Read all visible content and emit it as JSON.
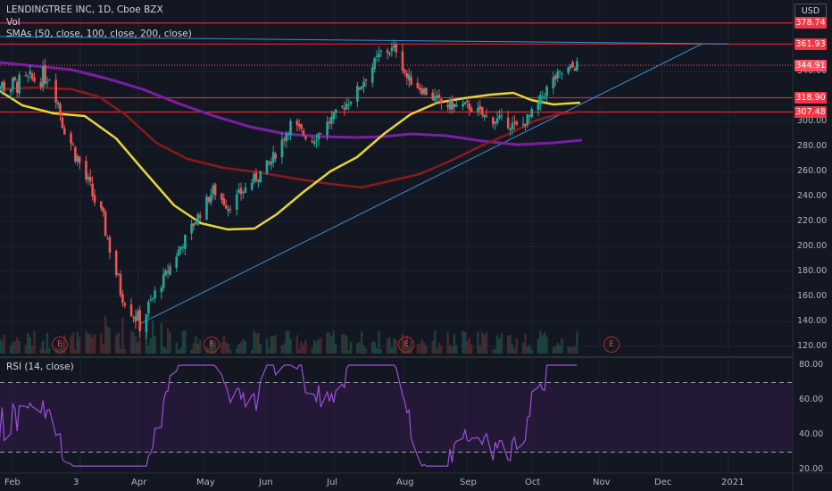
{
  "header": {
    "symbol_line": "LENDINGTREE INC, 1D, Cboe BZX",
    "vol_label": "Vol",
    "sma_label": "SMAs (50, close, 100, close, 200, close)",
    "currency": "USD",
    "rsi_label": "RSI (14, close)"
  },
  "earnings_marker": "E",
  "price_tags": [
    {
      "label": "378.74",
      "value": 378.74,
      "color": "#f23645"
    },
    {
      "label": "361.93",
      "value": 361.93,
      "color": "#f23645"
    },
    {
      "label": "344.91",
      "value": 344.91,
      "color": "#f7525f"
    },
    {
      "label": "318.90",
      "value": 318.9,
      "color": "#f23645"
    },
    {
      "label": "307.48",
      "value": 307.48,
      "color": "#f23645"
    }
  ],
  "chart_data": {
    "type": "candlestick",
    "price_axis": {
      "ticks": [
        "340.00",
        "320.00",
        "300.00",
        "280.00",
        "260.00",
        "240.00",
        "220.00",
        "200.00",
        "180.00",
        "160.00",
        "140.00",
        "120.00"
      ],
      "range": [
        114,
        384
      ]
    },
    "rsi_axis": {
      "ticks": [
        "80.00",
        "60.00",
        "40.00",
        "20.00"
      ],
      "range": [
        16,
        84
      ],
      "bands": [
        30,
        70
      ]
    },
    "x_axis": {
      "ticks": [
        "Feb",
        "3",
        "Apr",
        "May",
        "Jun",
        "Jul",
        "Aug",
        "Sep",
        "Oct",
        "Nov",
        "Dec",
        "2021"
      ]
    },
    "horizontal_levels": [
      378.74,
      361.93,
      318.9,
      307.48
    ],
    "trendlines": [
      {
        "name": "descending",
        "from": [
          "Jan 20",
          368
        ],
        "to": [
          "Dec 30",
          362
        ]
      },
      {
        "name": "ascending",
        "from": [
          "Apr 1",
          138
        ],
        "to": [
          "Dec 18",
          362
        ]
      }
    ],
    "candles_key_points": [
      {
        "date": "Jan 20",
        "close": 330
      },
      {
        "date": "Feb 1",
        "close": 328
      },
      {
        "date": "Feb 20",
        "close": 338
      },
      {
        "date": "Feb 25",
        "close": 300
      },
      {
        "date": "Mar 15",
        "close": 220
      },
      {
        "date": "Mar 23",
        "close": 165
      },
      {
        "date": "Apr 1",
        "close": 138
      },
      {
        "date": "Apr 20",
        "close": 200
      },
      {
        "date": "May 5",
        "close": 245
      },
      {
        "date": "May 12",
        "close": 232
      },
      {
        "date": "Jun 1",
        "close": 268
      },
      {
        "date": "Jun 10",
        "close": 298
      },
      {
        "date": "Jun 20",
        "close": 285
      },
      {
        "date": "Jul 10",
        "close": 322
      },
      {
        "date": "Jul 22",
        "close": 355
      },
      {
        "date": "Jul 29",
        "close": 358
      },
      {
        "date": "Aug 3",
        "close": 335
      },
      {
        "date": "Aug 20",
        "close": 313
      },
      {
        "date": "Sep 1",
        "close": 312
      },
      {
        "date": "Sep 10",
        "close": 302
      },
      {
        "date": "Sep 18",
        "close": 300
      },
      {
        "date": "Sep 24",
        "close": 294
      },
      {
        "date": "Oct 1",
        "close": 308
      },
      {
        "date": "Oct 9",
        "close": 332
      },
      {
        "date": "Oct 15",
        "close": 340
      },
      {
        "date": "Oct 21",
        "close": 344.91
      }
    ],
    "series": [
      {
        "name": "SMA 50",
        "color": "#e6d43a"
      },
      {
        "name": "SMA 100",
        "color": "#8b1a1a"
      },
      {
        "name": "SMA 200",
        "color": "#7b1fa2"
      }
    ]
  }
}
